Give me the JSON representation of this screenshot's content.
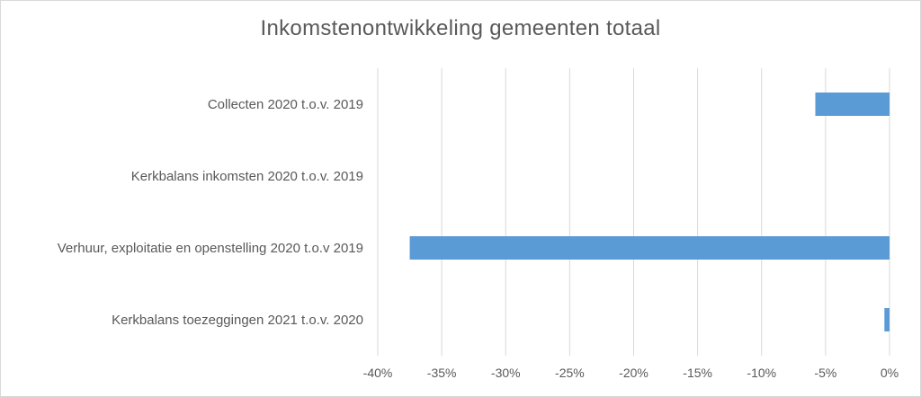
{
  "chart_data": {
    "type": "bar",
    "orientation": "horizontal",
    "title": "Inkomstenontwikkeling gemeenten totaal",
    "xlabel": "",
    "ylabel": "",
    "categories": [
      "Collecten 2020 t.o.v. 2019",
      "Kerkbalans inkomsten 2020 t.o.v. 2019",
      "Verhuur, exploitatie en openstelling 2020 t.o.v 2019",
      "Kerkbalans toezeggingen 2021 t.o.v. 2020"
    ],
    "values": [
      -5.8,
      0,
      -37.5,
      -0.4
    ],
    "xlim": [
      -40,
      0
    ],
    "ticks": [
      -40,
      -35,
      -30,
      -25,
      -20,
      -15,
      -10,
      -5,
      0
    ],
    "tick_labels": [
      "-40%",
      "-35%",
      "-30%",
      "-25%",
      "-20%",
      "-15%",
      "-10%",
      "-5%",
      "0%"
    ],
    "grid": true,
    "legend": "none",
    "bar_color": "#5b9bd5",
    "grid_color": "#d9d9d9"
  }
}
